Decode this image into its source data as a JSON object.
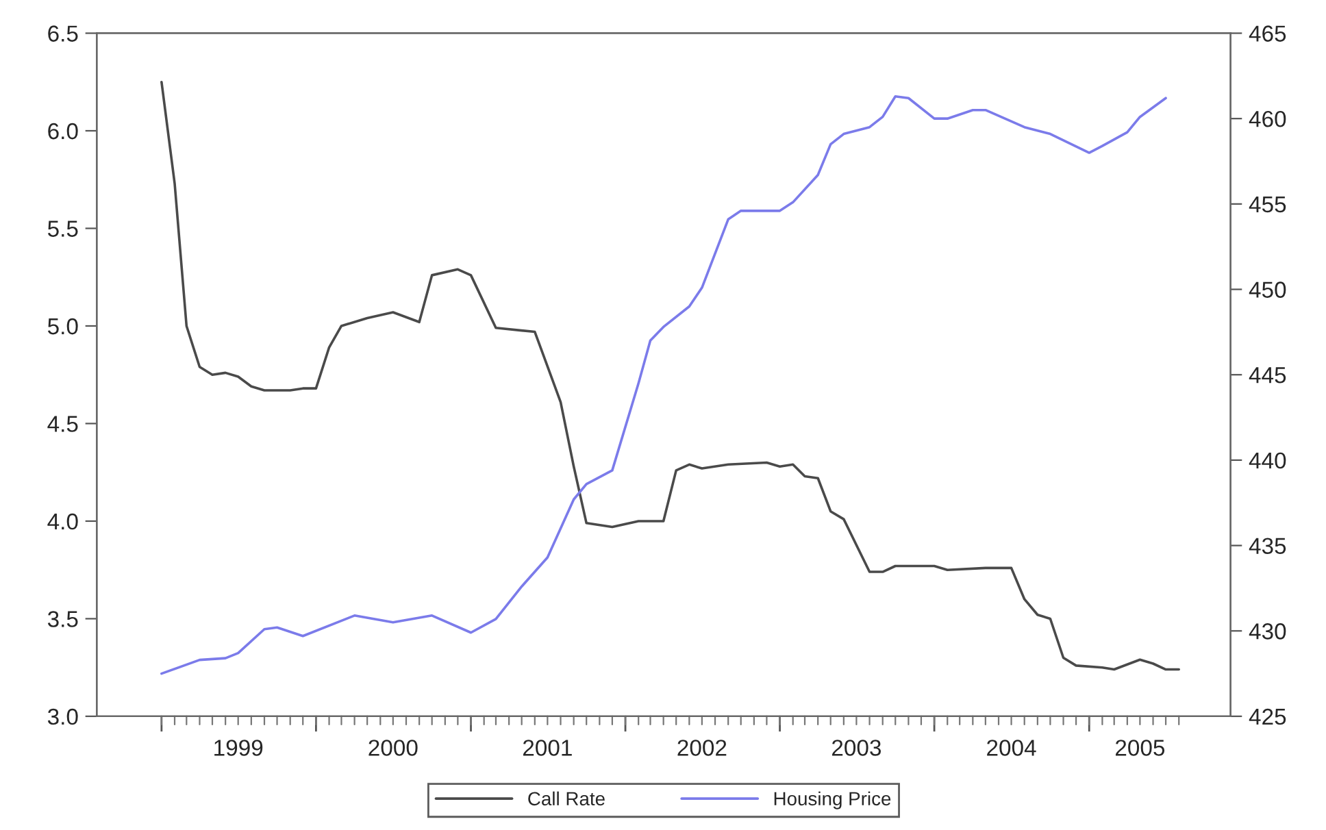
{
  "chart_data": {
    "type": "line",
    "xlim": [
      "1998-08",
      "2005-12"
    ],
    "xticks": [
      {
        "value": "1999-01",
        "label": null
      },
      {
        "value": "2000-01",
        "label": null
      },
      {
        "value": "2001-01",
        "label": null
      },
      {
        "value": "2002-01",
        "label": null
      },
      {
        "value": "2003-01",
        "label": null
      },
      {
        "value": "2004-01",
        "label": null
      },
      {
        "value": "2005-01",
        "label": null
      },
      {
        "value": "1999-07",
        "label": "1999"
      },
      {
        "value": "2000-07",
        "label": "2000"
      },
      {
        "value": "2001-07",
        "label": "2001"
      },
      {
        "value": "2002-07",
        "label": "2002"
      },
      {
        "value": "2003-07",
        "label": "2003"
      },
      {
        "value": "2004-07",
        "label": "2004"
      },
      {
        "value": "2005-05",
        "label": "2005"
      }
    ],
    "ylim": [
      3.0,
      6.5
    ],
    "yticks": [
      {
        "value": 3.0,
        "label": "3.0"
      },
      {
        "value": 3.5,
        "label": "3.5"
      },
      {
        "value": 4.0,
        "label": "4.0"
      },
      {
        "value": 4.5,
        "label": "4.5"
      },
      {
        "value": 5.0,
        "label": "5.0"
      },
      {
        "value": 5.5,
        "label": "5.5"
      },
      {
        "value": 6.0,
        "label": "6.0"
      },
      {
        "value": 6.5,
        "label": "6.5"
      }
    ],
    "y2lim": [
      425,
      465
    ],
    "y2ticks": [
      425,
      430,
      435,
      440,
      445,
      450,
      455,
      460,
      465
    ],
    "grid": false,
    "legend": "bottom",
    "series": [
      {
        "name": "Call Rate",
        "color": "#4a4a4a",
        "x": [
          "1999-01",
          "1999-02",
          "1999-03",
          "1999-04",
          "1999-05",
          "1999-06",
          "1999-07",
          "1999-08",
          "1999-09",
          "1999-11",
          "1999-12",
          "2000-01",
          "2000-02",
          "2000-03",
          "2000-05",
          "2000-07",
          "2000-09",
          "2000-10",
          "2000-12",
          "2001-01",
          "2001-03",
          "2001-06",
          "2001-08",
          "2001-09",
          "2001-10",
          "2001-12",
          "2002-02",
          "2002-04",
          "2002-05",
          "2002-06",
          "2002-07",
          "2002-09",
          "2002-12",
          "2003-01",
          "2003-02",
          "2003-03",
          "2003-04",
          "2003-05",
          "2003-06",
          "2003-08",
          "2003-09",
          "2003-10",
          "2004-01",
          "2004-02",
          "2004-05",
          "2004-07",
          "2004-08",
          "2004-09",
          "2004-10",
          "2004-11",
          "2004-12",
          "2005-02",
          "2005-03",
          "2005-05",
          "2005-06",
          "2005-07",
          "2005-08"
        ],
        "values": [
          6.25,
          5.73,
          5.0,
          4.79,
          4.75,
          4.76,
          4.74,
          4.69,
          4.67,
          4.67,
          4.68,
          4.68,
          4.89,
          5.0,
          5.04,
          5.07,
          5.02,
          5.26,
          5.29,
          5.26,
          4.99,
          4.97,
          4.61,
          4.28,
          3.99,
          3.97,
          4.0,
          4.0,
          4.26,
          4.29,
          4.27,
          4.29,
          4.3,
          4.28,
          4.29,
          4.23,
          4.22,
          4.05,
          4.01,
          3.74,
          3.74,
          3.77,
          3.77,
          3.75,
          3.76,
          3.76,
          3.6,
          3.52,
          3.5,
          3.3,
          3.26,
          3.25,
          3.24,
          3.29,
          3.27,
          3.24,
          3.24
        ]
      },
      {
        "name": "Housing Price",
        "color": "#7b7bea",
        "axis": "y2",
        "x": [
          "1999-01",
          "1999-04",
          "1999-06",
          "1999-07",
          "1999-09",
          "1999-10",
          "1999-12",
          "2000-04",
          "2000-07",
          "2000-10",
          "2001-01",
          "2001-03",
          "2001-05",
          "2001-07",
          "2001-09",
          "2001-10",
          "2001-12",
          "2002-02",
          "2002-03",
          "2002-04",
          "2002-06",
          "2002-07",
          "2002-09",
          "2002-10",
          "2003-01",
          "2003-02",
          "2003-04",
          "2003-05",
          "2003-06",
          "2003-08",
          "2003-09",
          "2003-10",
          "2003-11",
          "2004-01",
          "2004-02",
          "2004-04",
          "2004-05",
          "2004-08",
          "2004-10",
          "2005-01",
          "2005-02",
          "2005-04",
          "2005-05",
          "2005-07"
        ],
        "values": [
          427.5,
          428.3,
          428.4,
          428.7,
          430.1,
          430.2,
          429.7,
          430.9,
          430.5,
          430.9,
          429.9,
          430.7,
          432.6,
          434.3,
          437.7,
          438.6,
          439.4,
          444.5,
          447.0,
          447.8,
          449.0,
          450.1,
          454.1,
          454.6,
          454.6,
          455.1,
          456.7,
          458.5,
          459.1,
          459.5,
          460.1,
          461.3,
          461.2,
          460.0,
          460.0,
          460.5,
          460.5,
          459.5,
          459.1,
          458.0,
          458.4,
          459.2,
          460.1,
          461.2
        ]
      }
    ]
  }
}
